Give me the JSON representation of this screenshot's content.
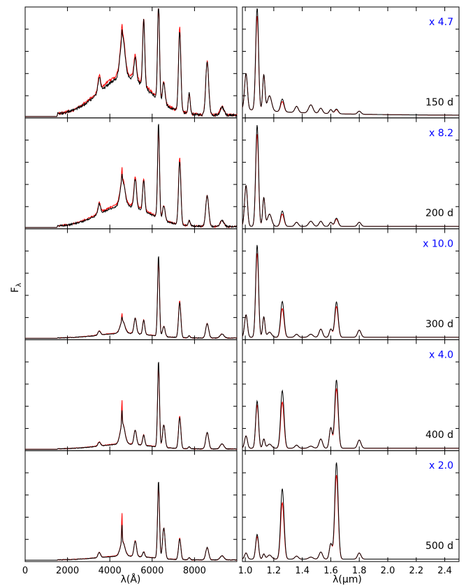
{
  "chart_data": {
    "type": "line",
    "ylabel": "F",
    "ylabel_sub": "λ",
    "panels_left": {
      "xlabel": "λ(Å)",
      "xlim": [
        0,
        10000
      ],
      "xticks": [
        0,
        2000,
        4000,
        6000,
        8000
      ],
      "xtick_labels": [
        "0",
        "2000",
        "4000",
        "6000",
        "8000"
      ]
    },
    "panels_right": {
      "xlabel": "λ(μm)",
      "xlim": [
        0.98,
        2.5
      ],
      "xticks": [
        1.0,
        1.2,
        1.4,
        1.6,
        1.8,
        2.0,
        2.2,
        2.4
      ],
      "xtick_labels": [
        "1.0",
        "1.2",
        "1.4",
        "1.6",
        "1.8",
        "2.0",
        "2.2",
        "2.4"
      ]
    },
    "rows": [
      {
        "epoch": "150 d",
        "scale": "x 4.7"
      },
      {
        "epoch": "200 d",
        "scale": "x 8.2"
      },
      {
        "epoch": "300 d",
        "scale": "x 10.0"
      },
      {
        "epoch": "400 d",
        "scale": "x 4.0"
      },
      {
        "epoch": "500 d",
        "scale": "x 2.0"
      }
    ],
    "series": [
      {
        "color": "#ff0000"
      },
      {
        "color": "#000000"
      }
    ],
    "optical_lines": [
      {
        "center": 6300,
        "width": 45,
        "amp": [
          0.95,
          0.88,
          0.75,
          0.8,
          0.72
        ]
      },
      {
        "center": 7300,
        "width": 55,
        "amp": [
          0.78,
          0.62,
          0.34,
          0.3,
          0.2
        ]
      },
      {
        "center": 8600,
        "width": 70,
        "amp": [
          0.52,
          0.3,
          0.14,
          0.16,
          0.12
        ]
      },
      {
        "center": 6550,
        "width": 60,
        "amp": [
          0.2,
          0.14,
          0.1,
          0.22,
          0.3
        ]
      },
      {
        "center": 5600,
        "width": 50,
        "amp": [
          0.65,
          0.3,
          0.14,
          0.1,
          0.05
        ]
      },
      {
        "center": 5200,
        "width": 60,
        "amp": [
          0.22,
          0.28,
          0.15,
          0.14,
          0.15
        ]
      },
      {
        "center": 4600,
        "width": 110,
        "amp": [
          0.4,
          0.25,
          0.12,
          0.2,
          0.14
        ]
      },
      {
        "center": 4571,
        "width": 15,
        "amp": [
          0.12,
          0.12,
          0.08,
          0.25,
          0.3
        ]
      },
      {
        "center": 7750,
        "width": 45,
        "amp": [
          0.2,
          0.05,
          0.02,
          0.02,
          0.02
        ]
      },
      {
        "center": 9300,
        "width": 90,
        "amp": [
          0.08,
          0.06,
          0.04,
          0.05,
          0.04
        ]
      },
      {
        "center": 3500,
        "width": 60,
        "amp": [
          0.15,
          0.1,
          0.04,
          0.04,
          0.05
        ]
      }
    ],
    "optical_continuum": {
      "center": 4700,
      "width": 1200,
      "amp": [
        0.4,
        0.22,
        0.05,
        0.05,
        0.04
      ]
    },
    "nir_lines": [
      {
        "center": 1.083,
        "width": 0.01,
        "amp": [
          0.92,
          0.9,
          0.82,
          0.42,
          0.22
        ]
      },
      {
        "center": 1.005,
        "width": 0.01,
        "amp": [
          0.35,
          0.4,
          0.22,
          0.12,
          0.06
        ]
      },
      {
        "center": 1.13,
        "width": 0.008,
        "amp": [
          0.35,
          0.28,
          0.2,
          0.09,
          0.05
        ]
      },
      {
        "center": 1.26,
        "width": 0.012,
        "amp": [
          0.1,
          0.12,
          0.28,
          0.45,
          0.55
        ]
      },
      {
        "center": 1.64,
        "width": 0.012,
        "amp": [
          0.04,
          0.07,
          0.3,
          0.58,
          0.82
        ]
      },
      {
        "center": 1.6,
        "width": 0.01,
        "amp": [
          0.04,
          0.04,
          0.08,
          0.2,
          0.15
        ]
      },
      {
        "center": 1.53,
        "width": 0.012,
        "amp": [
          0.05,
          0.05,
          0.08,
          0.09,
          0.07
        ]
      },
      {
        "center": 1.8,
        "width": 0.012,
        "amp": [
          0.03,
          0.04,
          0.07,
          0.08,
          0.06
        ]
      },
      {
        "center": 1.17,
        "width": 0.015,
        "amp": [
          0.15,
          0.12,
          0.05,
          0.04,
          0.04
        ]
      },
      {
        "center": 1.46,
        "width": 0.015,
        "amp": [
          0.08,
          0.05,
          0.03,
          0.02,
          0.02
        ]
      },
      {
        "center": 1.36,
        "width": 0.012,
        "amp": [
          0.06,
          0.04,
          0.03,
          0.03,
          0.03
        ]
      }
    ]
  }
}
